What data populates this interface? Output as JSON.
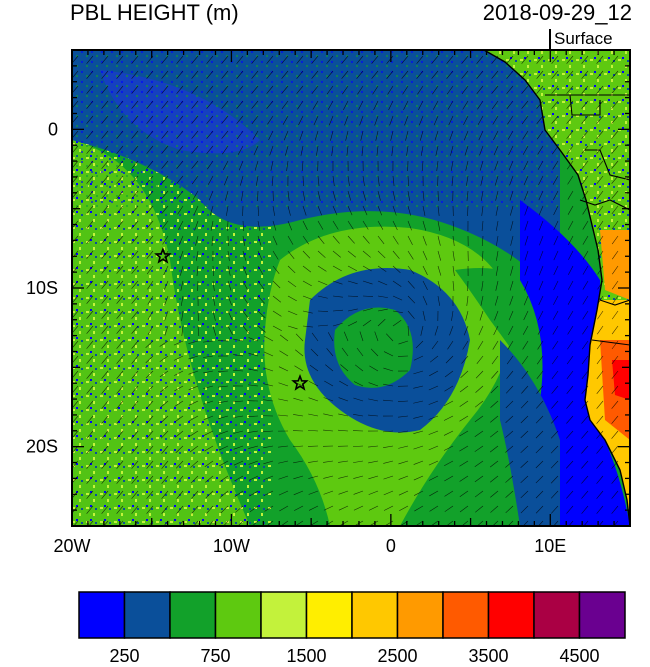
{
  "header": {
    "title": "PBL HEIGHT (m)",
    "datetime": "2018-09-29_12",
    "level": "Surface"
  },
  "map": {
    "lon_range": [
      -20,
      15
    ],
    "lat_range": [
      -25,
      5
    ],
    "x_ticks": [
      {
        "value": -20,
        "label": "20W"
      },
      {
        "value": -10,
        "label": "10W"
      },
      {
        "value": 0,
        "label": "0"
      },
      {
        "value": 10,
        "label": "10E"
      }
    ],
    "y_ticks": [
      {
        "value": 0,
        "label": "0"
      },
      {
        "value": -10,
        "label": "10S"
      },
      {
        "value": -20,
        "label": "20S"
      }
    ],
    "markers": [
      {
        "name": "star-marker-1",
        "lon": -14.3,
        "lat": -8.0
      },
      {
        "name": "star-marker-2",
        "lon": -5.7,
        "lat": -16.0
      }
    ]
  },
  "colorbar": {
    "colors": [
      "#0000ff",
      "#0a4f9a",
      "#12a12a",
      "#5ec910",
      "#c3f23b",
      "#ffee00",
      "#ffc800",
      "#ff9a00",
      "#ff5a00",
      "#ff0000",
      "#aa0044",
      "#6a0090"
    ],
    "labels": [
      "250",
      "750",
      "1500",
      "2500",
      "3500",
      "4500"
    ]
  }
}
